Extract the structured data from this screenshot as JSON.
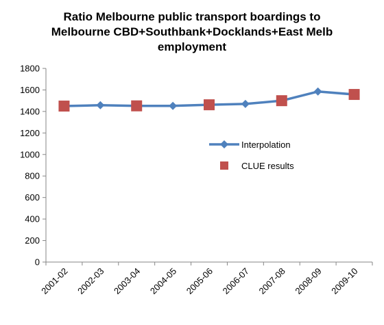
{
  "chart_data": {
    "type": "line",
    "title_lines": [
      "Ratio Melbourne public transport boardings to",
      "Melbourne CBD+Southbank+Docklands+East Melb",
      "employment"
    ],
    "categories": [
      "2001-02",
      "2002-03",
      "2003-04",
      "2004-05",
      "2005-06",
      "2006-07",
      "2007-08",
      "2008-09",
      "2009-10"
    ],
    "ylim": [
      0,
      1800
    ],
    "yticks": [
      0,
      200,
      400,
      600,
      800,
      1000,
      1200,
      1400,
      1600,
      1800
    ],
    "grid": false,
    "legend_position": "right-middle",
    "series": [
      {
        "name": "Interpolation",
        "style": "line-diamond",
        "color": "#4F81BD",
        "values": [
          1450,
          1458,
          1452,
          1452,
          1462,
          1470,
          1500,
          1585,
          1558
        ]
      },
      {
        "name": "CLUE results",
        "style": "square-markers",
        "color": "#C0504D",
        "values": [
          1450,
          null,
          1452,
          null,
          1462,
          null,
          1500,
          null,
          1558
        ]
      }
    ]
  }
}
